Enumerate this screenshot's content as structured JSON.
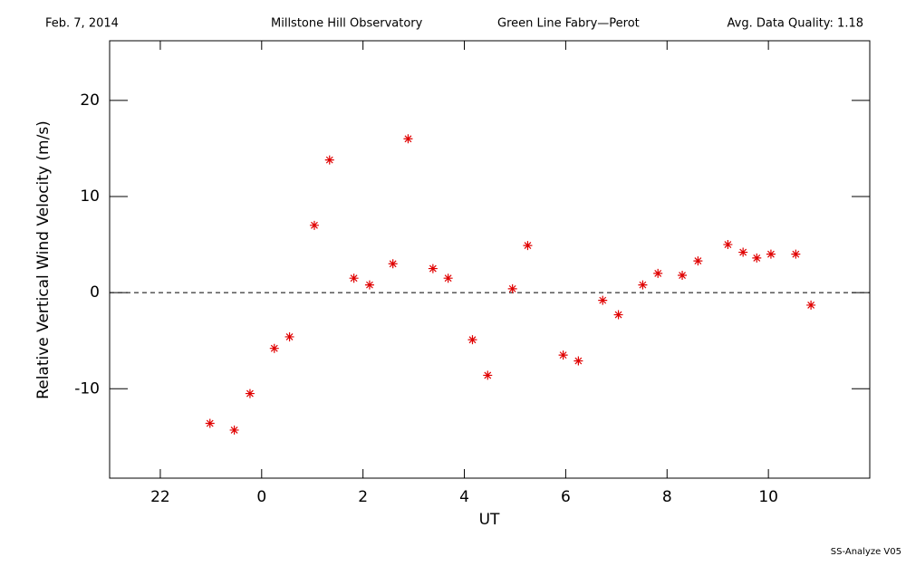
{
  "chart_data": {
    "type": "scatter",
    "header": [
      "Feb. 7, 2014",
      "Millstone Hill Observatory",
      "Green Line Fabry—Perot",
      "Avg. Data Quality: 1.18"
    ],
    "footer": "SS-Analyze V05",
    "xlabel": "UT",
    "ylabel": "Relative Vertical Wind Velocity (m/s)",
    "xlim": [
      21,
      36
    ],
    "ylim": [
      -19.3,
      26.2
    ],
    "xticks": [
      22,
      {
        "value": 24,
        "label": "0"
      },
      {
        "value": 26,
        "label": "2"
      },
      {
        "value": 28,
        "label": "4"
      },
      {
        "value": 30,
        "label": "6"
      },
      {
        "value": 32,
        "label": "8"
      },
      {
        "value": 34,
        "label": "10"
      }
    ],
    "yticks": [
      -10,
      0,
      10,
      20
    ],
    "hline": 0,
    "color": "#e00000",
    "x": [
      22.98,
      23.46,
      23.77,
      24.25,
      24.55,
      25.04,
      25.34,
      25.82,
      26.13,
      26.59,
      26.89,
      27.38,
      27.68,
      28.16,
      28.46,
      28.95,
      29.25,
      29.95,
      30.25,
      30.73,
      31.04,
      31.52,
      31.82,
      32.3,
      32.61,
      33.2,
      33.5,
      33.77,
      34.05,
      34.54,
      34.84
    ],
    "values": [
      -13.6,
      -14.3,
      -10.5,
      -5.8,
      -4.6,
      7.0,
      13.8,
      1.5,
      0.8,
      3.0,
      16.0,
      2.5,
      1.5,
      -4.9,
      -8.6,
      0.4,
      4.9,
      -6.5,
      -7.1,
      -0.8,
      -2.3,
      0.8,
      2.0,
      1.8,
      3.3,
      5.0,
      4.2,
      3.6,
      4.0,
      4.0,
      -1.3
    ]
  }
}
